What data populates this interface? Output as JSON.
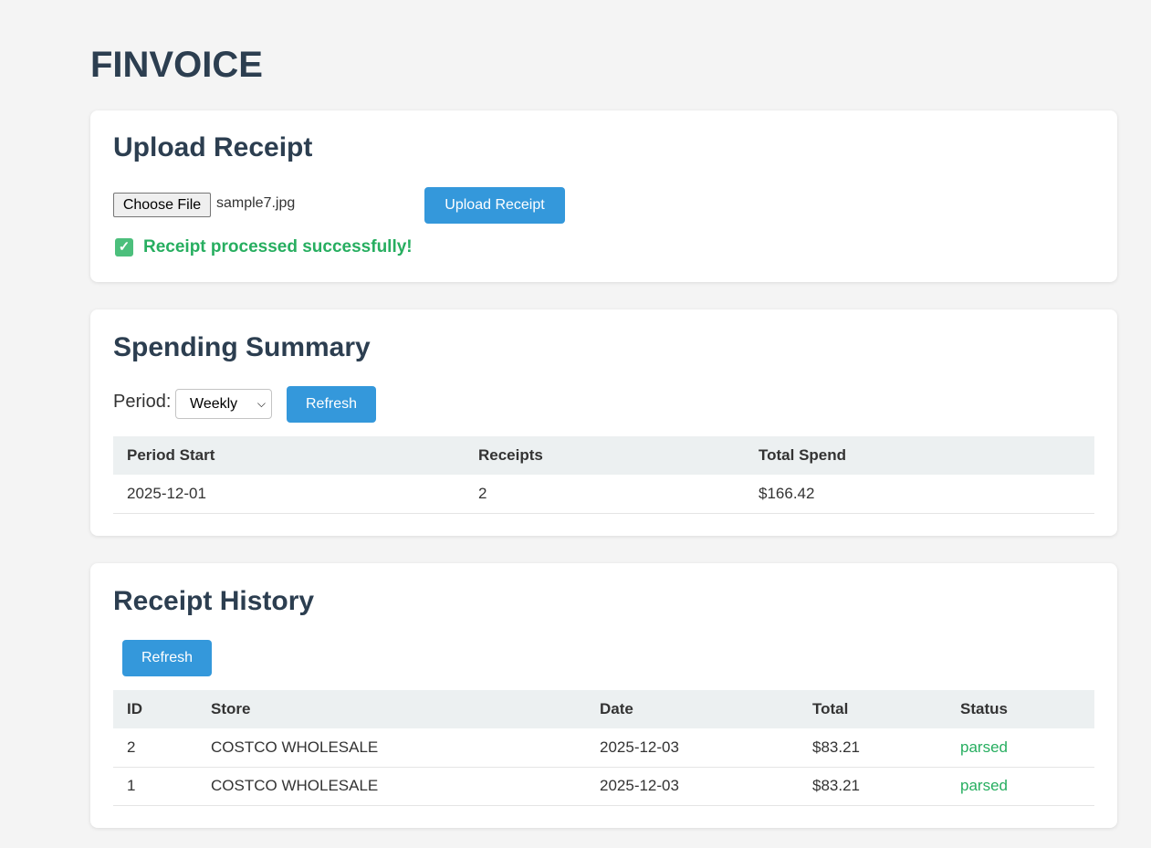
{
  "app": {
    "title": "FINVOICE"
  },
  "upload": {
    "heading": "Upload Receipt",
    "choose_file_label": "Choose File",
    "file_name": "sample7.jpg",
    "upload_button": "Upload Receipt",
    "success_icon": "check-icon",
    "success_message": "Receipt processed successfully!"
  },
  "summary": {
    "heading": "Spending Summary",
    "period_label": "Period:",
    "period_selected": "Weekly",
    "refresh_button": "Refresh",
    "columns": [
      "Period Start",
      "Receipts",
      "Total Spend"
    ],
    "rows": [
      [
        "2025-12-01",
        "2",
        "$166.42"
      ]
    ]
  },
  "history": {
    "heading": "Receipt History",
    "refresh_button": "Refresh",
    "columns": [
      "ID",
      "Store",
      "Date",
      "Total",
      "Status"
    ],
    "rows": [
      [
        "2",
        "COSTCO WHOLESALE",
        "2025-12-03",
        "$83.21",
        "parsed"
      ],
      [
        "1",
        "COSTCO WHOLESALE",
        "2025-12-03",
        "$83.21",
        "parsed"
      ]
    ]
  },
  "colors": {
    "accent": "#3498db",
    "heading": "#2c3e50",
    "success": "#27ae60",
    "background": "#f4f4f4"
  }
}
